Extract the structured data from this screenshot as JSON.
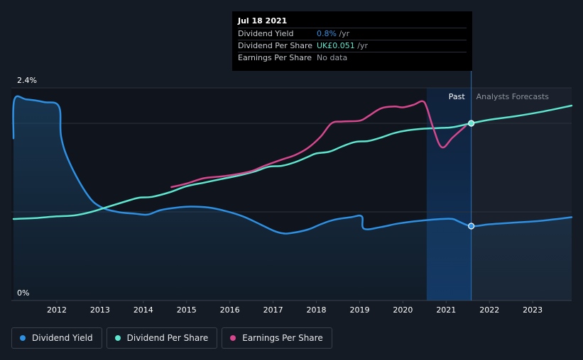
{
  "chart_data": {
    "type": "line",
    "x_ticks": [
      "2012",
      "2013",
      "2014",
      "2015",
      "2016",
      "2017",
      "2018",
      "2019",
      "2020",
      "2021",
      "2022",
      "2023"
    ],
    "y_ticks": [
      {
        "value": 2.4,
        "label": "2.4%"
      },
      {
        "value": 0,
        "label": "0%"
      }
    ],
    "ylim": [
      0,
      2.4
    ],
    "xlim": [
      2010.95,
      2023.9
    ],
    "regions": {
      "past_label": "Past",
      "forecast_label": "Analysts Forecasts",
      "highlight_start": 2020.55,
      "divider_x": 2021.58
    },
    "series": [
      {
        "key": "dividend_yield",
        "name": "Dividend Yield",
        "color": "#2e90e3",
        "area": true,
        "points": [
          [
            2011.0,
            1.83
          ],
          [
            2011.02,
            2.27
          ],
          [
            2011.3,
            2.27
          ],
          [
            2011.7,
            2.24
          ],
          [
            2012.05,
            2.19
          ],
          [
            2012.1,
            1.85
          ],
          [
            2012.3,
            1.55
          ],
          [
            2012.7,
            1.2
          ],
          [
            2013.0,
            1.06
          ],
          [
            2013.4,
            1.0
          ],
          [
            2013.8,
            0.98
          ],
          [
            2014.1,
            0.97
          ],
          [
            2014.4,
            1.02
          ],
          [
            2014.8,
            1.05
          ],
          [
            2015.1,
            1.06
          ],
          [
            2015.5,
            1.05
          ],
          [
            2015.9,
            1.01
          ],
          [
            2016.3,
            0.95
          ],
          [
            2016.7,
            0.86
          ],
          [
            2017.0,
            0.79
          ],
          [
            2017.2,
            0.76
          ],
          [
            2017.4,
            0.76
          ],
          [
            2017.8,
            0.8
          ],
          [
            2018.1,
            0.86
          ],
          [
            2018.4,
            0.91
          ],
          [
            2018.8,
            0.94
          ],
          [
            2019.05,
            0.95
          ],
          [
            2019.1,
            0.81
          ],
          [
            2019.5,
            0.83
          ],
          [
            2019.9,
            0.87
          ],
          [
            2020.4,
            0.9
          ],
          [
            2020.9,
            0.92
          ],
          [
            2021.15,
            0.92
          ],
          [
            2021.3,
            0.89
          ],
          [
            2021.58,
            0.84
          ],
          [
            2022.0,
            0.86
          ],
          [
            2022.6,
            0.88
          ],
          [
            2023.2,
            0.9
          ],
          [
            2023.9,
            0.94
          ]
        ],
        "end_marker": [
          2021.58,
          0.84
        ]
      },
      {
        "key": "dividend_per_share",
        "name": "Dividend Per Share",
        "color": "#5ee6cf",
        "area": false,
        "points": [
          [
            2011.0,
            0.92
          ],
          [
            2011.5,
            0.93
          ],
          [
            2012.0,
            0.95
          ],
          [
            2012.4,
            0.96
          ],
          [
            2012.8,
            1.0
          ],
          [
            2013.2,
            1.06
          ],
          [
            2013.6,
            1.12
          ],
          [
            2013.9,
            1.16
          ],
          [
            2014.2,
            1.17
          ],
          [
            2014.6,
            1.22
          ],
          [
            2015.0,
            1.29
          ],
          [
            2015.4,
            1.33
          ],
          [
            2015.8,
            1.37
          ],
          [
            2016.2,
            1.41
          ],
          [
            2016.6,
            1.46
          ],
          [
            2016.9,
            1.51
          ],
          [
            2017.2,
            1.52
          ],
          [
            2017.5,
            1.56
          ],
          [
            2017.8,
            1.62
          ],
          [
            2018.0,
            1.66
          ],
          [
            2018.3,
            1.68
          ],
          [
            2018.6,
            1.74
          ],
          [
            2018.9,
            1.79
          ],
          [
            2019.2,
            1.8
          ],
          [
            2019.5,
            1.84
          ],
          [
            2019.8,
            1.89
          ],
          [
            2020.1,
            1.92
          ],
          [
            2020.5,
            1.94
          ],
          [
            2021.0,
            1.95
          ],
          [
            2021.2,
            1.96
          ],
          [
            2021.58,
            2.0
          ],
          [
            2022.0,
            2.04
          ],
          [
            2022.6,
            2.08
          ],
          [
            2023.2,
            2.13
          ],
          [
            2023.9,
            2.2
          ]
        ],
        "end_marker": [
          2021.58,
          2.0
        ]
      },
      {
        "key": "earnings_per_share",
        "name": "Earnings Per Share",
        "color": "#d6478d",
        "area": false,
        "points": [
          [
            2014.65,
            1.28
          ],
          [
            2015.0,
            1.32
          ],
          [
            2015.4,
            1.38
          ],
          [
            2015.8,
            1.4
          ],
          [
            2016.1,
            1.42
          ],
          [
            2016.5,
            1.46
          ],
          [
            2016.8,
            1.52
          ],
          [
            2017.2,
            1.59
          ],
          [
            2017.5,
            1.64
          ],
          [
            2017.8,
            1.72
          ],
          [
            2018.1,
            1.85
          ],
          [
            2018.35,
            2.0
          ],
          [
            2018.6,
            2.02
          ],
          [
            2019.0,
            2.03
          ],
          [
            2019.2,
            2.08
          ],
          [
            2019.5,
            2.17
          ],
          [
            2019.8,
            2.19
          ],
          [
            2020.0,
            2.18
          ],
          [
            2020.25,
            2.21
          ],
          [
            2020.45,
            2.25
          ],
          [
            2020.55,
            2.18
          ],
          [
            2020.7,
            1.95
          ],
          [
            2020.9,
            1.73
          ],
          [
            2021.15,
            1.84
          ],
          [
            2021.45,
            1.97
          ]
        ],
        "end_marker": null
      }
    ]
  },
  "tooltip": {
    "date": "Jul 18 2021",
    "rows": [
      {
        "label": "Dividend Yield",
        "value_main": "0.8%",
        "value_suffix": " /yr",
        "color": "#2e90e3"
      },
      {
        "label": "Dividend Per Share",
        "value_main": "UK£0.051",
        "value_suffix": " /yr",
        "color": "#5ee6cf"
      },
      {
        "label": "Earnings Per Share",
        "value_main": "No data",
        "value_suffix": "",
        "color": "#9aa0a8"
      }
    ]
  },
  "legend": [
    {
      "label": "Dividend Yield",
      "color": "#2e90e3"
    },
    {
      "label": "Dividend Per Share",
      "color": "#5ee6cf"
    },
    {
      "label": "Earnings Per Share",
      "color": "#d6478d"
    }
  ]
}
